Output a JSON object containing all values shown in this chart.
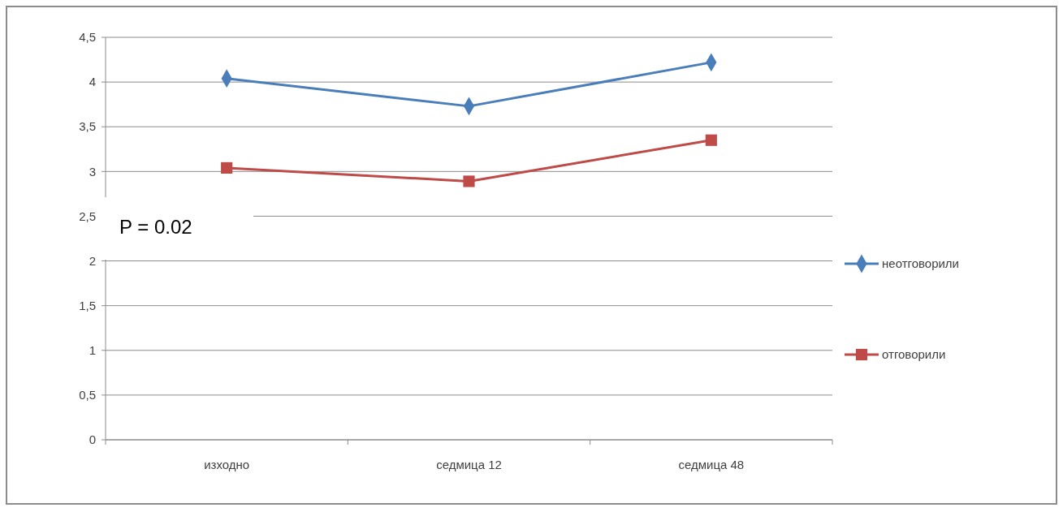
{
  "chart_data": {
    "type": "line",
    "categories": [
      "изходно",
      "седмица 12",
      "седмица 48"
    ],
    "series": [
      {
        "name": "неотговорили",
        "color": "#4a7ebb",
        "values": [
          4.04,
          3.73,
          4.22
        ],
        "marker": "diamond"
      },
      {
        "name": "отговорили",
        "color": "#be4b48",
        "values": [
          3.04,
          2.89,
          3.35
        ],
        "marker": "square"
      }
    ],
    "ylim": [
      0,
      4.5
    ],
    "yticks": [
      0,
      {
        "value": 0.5,
        "label": "0,5"
      },
      1,
      {
        "value": 1.5,
        "label": "1,5"
      },
      2,
      {
        "value": 2.5,
        "label": "2,5"
      },
      3,
      {
        "value": 3.5,
        "label": "3,5"
      },
      4,
      {
        "value": 4.5,
        "label": "4,5"
      }
    ],
    "grid": "y",
    "legend": "right",
    "annotations": [
      "P = 0.02"
    ]
  }
}
